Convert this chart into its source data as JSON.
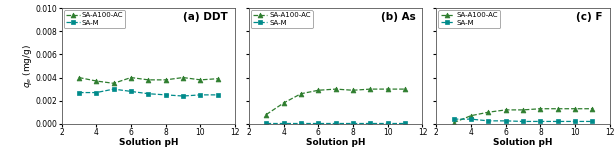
{
  "panels": [
    {
      "label": "(a) DDT",
      "x_a100": [
        3,
        4,
        5,
        6,
        7,
        8,
        9,
        10,
        11
      ],
      "y_a100": [
        0.004,
        0.0037,
        0.0035,
        0.004,
        0.0038,
        0.0038,
        0.004,
        0.0038,
        0.0039
      ],
      "x_m": [
        3,
        4,
        5,
        6,
        7,
        8,
        9,
        10,
        11
      ],
      "y_m": [
        0.0027,
        0.0027,
        0.003,
        0.0028,
        0.0026,
        0.0025,
        0.0024,
        0.0025,
        0.0025
      ]
    },
    {
      "label": "(b) As",
      "x_a100": [
        3,
        4,
        5,
        6,
        7,
        8,
        9,
        10,
        11
      ],
      "y_a100": [
        0.0008,
        0.0018,
        0.0026,
        0.0029,
        0.003,
        0.0029,
        0.003,
        0.003,
        0.003
      ],
      "x_m": [
        3,
        4,
        5,
        6,
        7,
        8,
        9,
        10,
        11
      ],
      "y_m": [
        5e-05,
        5e-05,
        5e-05,
        5e-05,
        5e-05,
        5e-05,
        5e-05,
        5e-05,
        5e-05
      ]
    },
    {
      "label": "(c) F",
      "x_a100": [
        3,
        4,
        5,
        6,
        7,
        8,
        9,
        10,
        11
      ],
      "y_a100": [
        0.0001,
        0.0007,
        0.001,
        0.0012,
        0.0012,
        0.0013,
        0.0013,
        0.0013,
        0.0013
      ],
      "x_m": [
        3,
        4,
        5,
        6,
        7,
        8,
        9,
        10,
        11
      ],
      "y_m": [
        0.0004,
        0.0004,
        0.00025,
        0.00025,
        0.0002,
        0.0002,
        0.0002,
        0.0002,
        0.0002
      ]
    }
  ],
  "color_a100": "#2e7d2e",
  "color_m": "#008b8b",
  "label_a100": "SA-A100-AC",
  "label_m": "SA-M",
  "xlabel": "Solution pH",
  "ylabel": "$q_e$ (mg/g)",
  "xlim": [
    2,
    12
  ],
  "xticks": [
    2,
    4,
    6,
    8,
    10,
    12
  ],
  "ylim": [
    0,
    0.01
  ],
  "yticks": [
    0.0,
    0.002,
    0.004,
    0.006,
    0.008,
    0.01
  ],
  "bg_color": "#ffffff"
}
